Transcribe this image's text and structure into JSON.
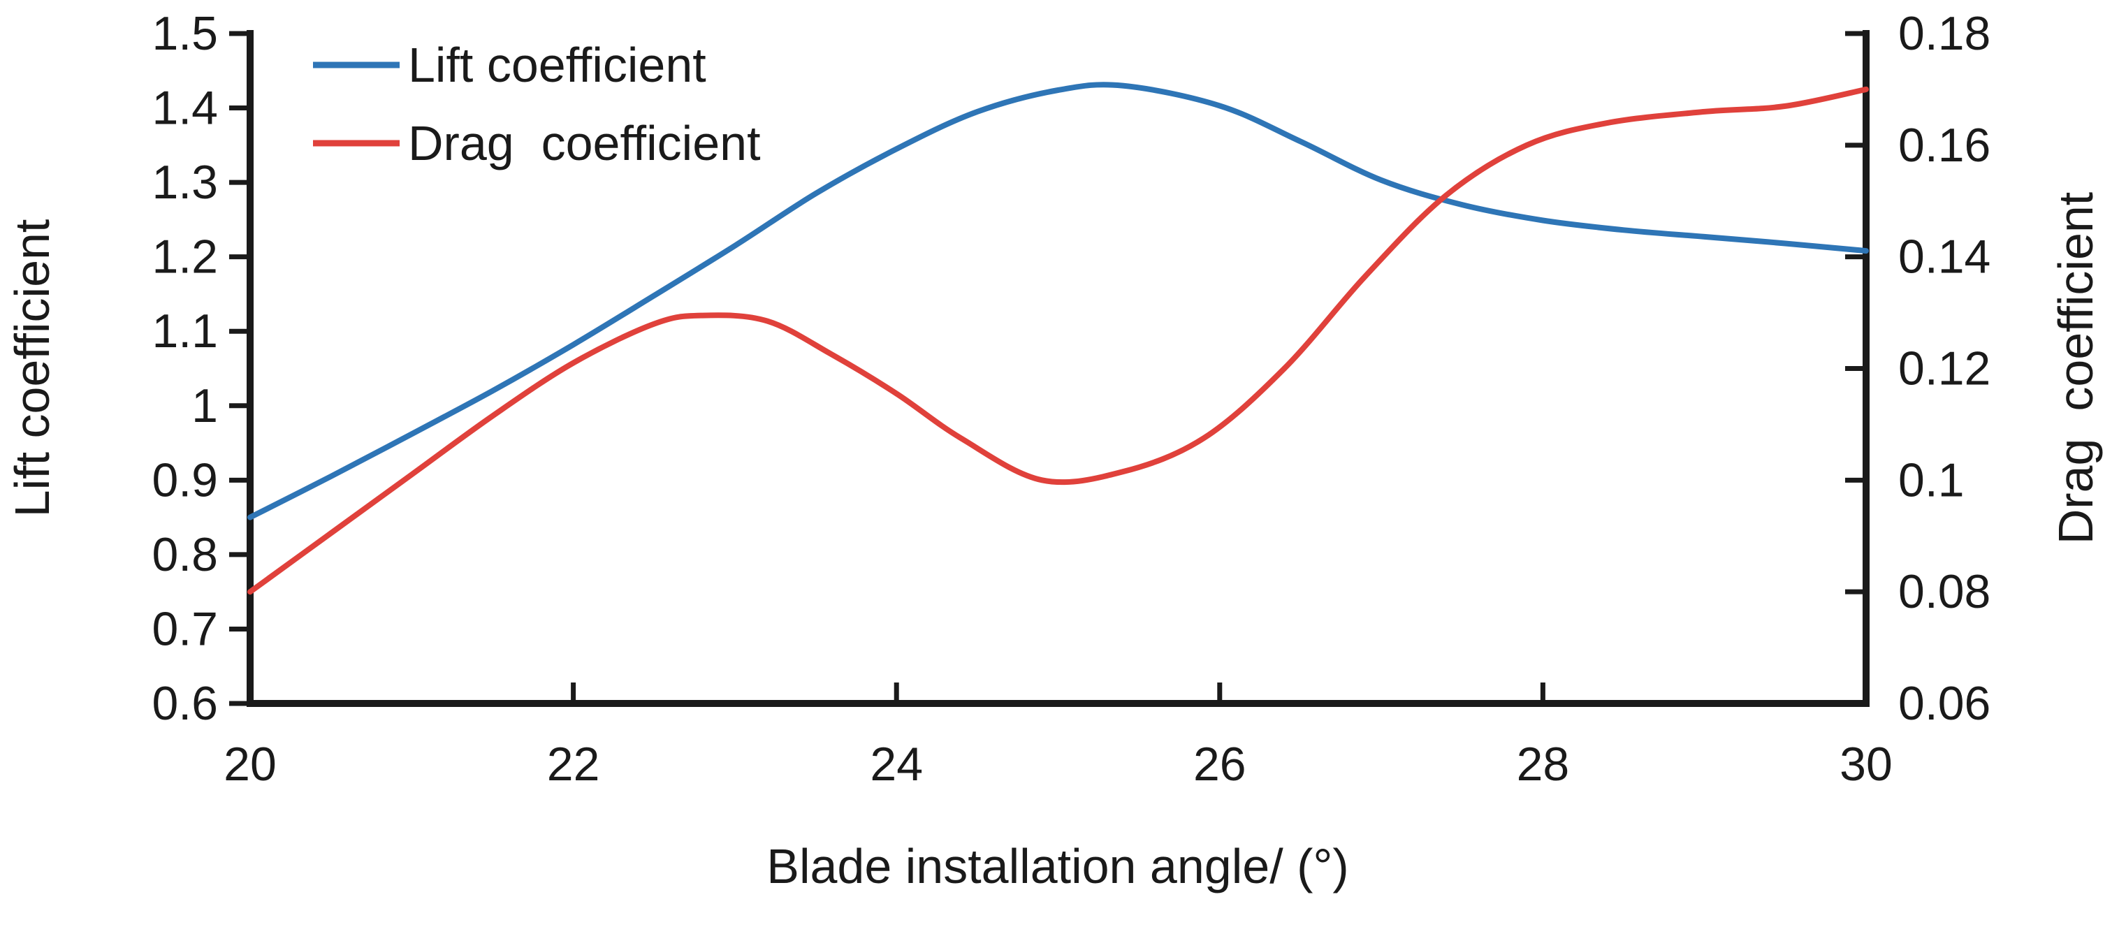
{
  "chart_data": {
    "type": "line",
    "title": "",
    "xlabel": "Blade installation angle/ (°)",
    "x_range": [
      20,
      30
    ],
    "x_ticks": [
      "20",
      "22",
      "24",
      "26",
      "28",
      "30"
    ],
    "left_axis": {
      "label": "Lift coefficient",
      "range": [
        0.6,
        1.5
      ],
      "ticks": [
        "1.5",
        "1.4",
        "1.3",
        "1.2",
        "1.1",
        "1",
        "0.9",
        "0.8",
        "0.7",
        "0.6"
      ]
    },
    "right_axis": {
      "label": "Drag  coefficient",
      "range": [
        0.06,
        0.18
      ],
      "ticks": [
        "0.18",
        "0.16",
        "0.14",
        "0.12",
        "0.1",
        "0.08",
        "0.06"
      ]
    },
    "grid": false,
    "axis_color": "#1a1a1a",
    "text_color": "#1a1a1a",
    "legend": {
      "position": "top-left",
      "items": [
        {
          "label": "Lift coefficient",
          "color": "#2e75b6"
        },
        {
          "label": "Drag  coefficient",
          "color": "#e0413b"
        }
      ]
    },
    "series": [
      {
        "name": "Lift coefficient",
        "axis": "left",
        "color": "#2e75b6",
        "points": [
          [
            20,
            0.85
          ],
          [
            20.5,
            0.905
          ],
          [
            21,
            0.962
          ],
          [
            21.5,
            1.02
          ],
          [
            22,
            1.082
          ],
          [
            22.5,
            1.148
          ],
          [
            23,
            1.215
          ],
          [
            23.5,
            1.285
          ],
          [
            24,
            1.345
          ],
          [
            24.5,
            1.395
          ],
          [
            25,
            1.424
          ],
          [
            25.4,
            1.43
          ],
          [
            26,
            1.403
          ],
          [
            26.5,
            1.355
          ],
          [
            27,
            1.303
          ],
          [
            27.5,
            1.27
          ],
          [
            28,
            1.249
          ],
          [
            28.5,
            1.236
          ],
          [
            29,
            1.227
          ],
          [
            29.5,
            1.218
          ],
          [
            30,
            1.208
          ]
        ]
      },
      {
        "name": "Drag  coefficient",
        "axis": "right",
        "color": "#e0413b",
        "points": [
          [
            20,
            0.08
          ],
          [
            20.5,
            0.0905
          ],
          [
            21,
            0.101
          ],
          [
            21.5,
            0.1115
          ],
          [
            22,
            0.121
          ],
          [
            22.5,
            0.128
          ],
          [
            22.8,
            0.1295
          ],
          [
            23.2,
            0.1285
          ],
          [
            23.6,
            0.1225
          ],
          [
            24,
            0.1155
          ],
          [
            24.4,
            0.1075
          ],
          [
            24.9,
            0.1
          ],
          [
            25.4,
            0.1015
          ],
          [
            25.9,
            0.1075
          ],
          [
            26.4,
            0.12
          ],
          [
            26.9,
            0.1365
          ],
          [
            27.4,
            0.151
          ],
          [
            27.9,
            0.16
          ],
          [
            28.4,
            0.164
          ],
          [
            29,
            0.166
          ],
          [
            29.5,
            0.167
          ],
          [
            30,
            0.17
          ]
        ]
      }
    ]
  }
}
